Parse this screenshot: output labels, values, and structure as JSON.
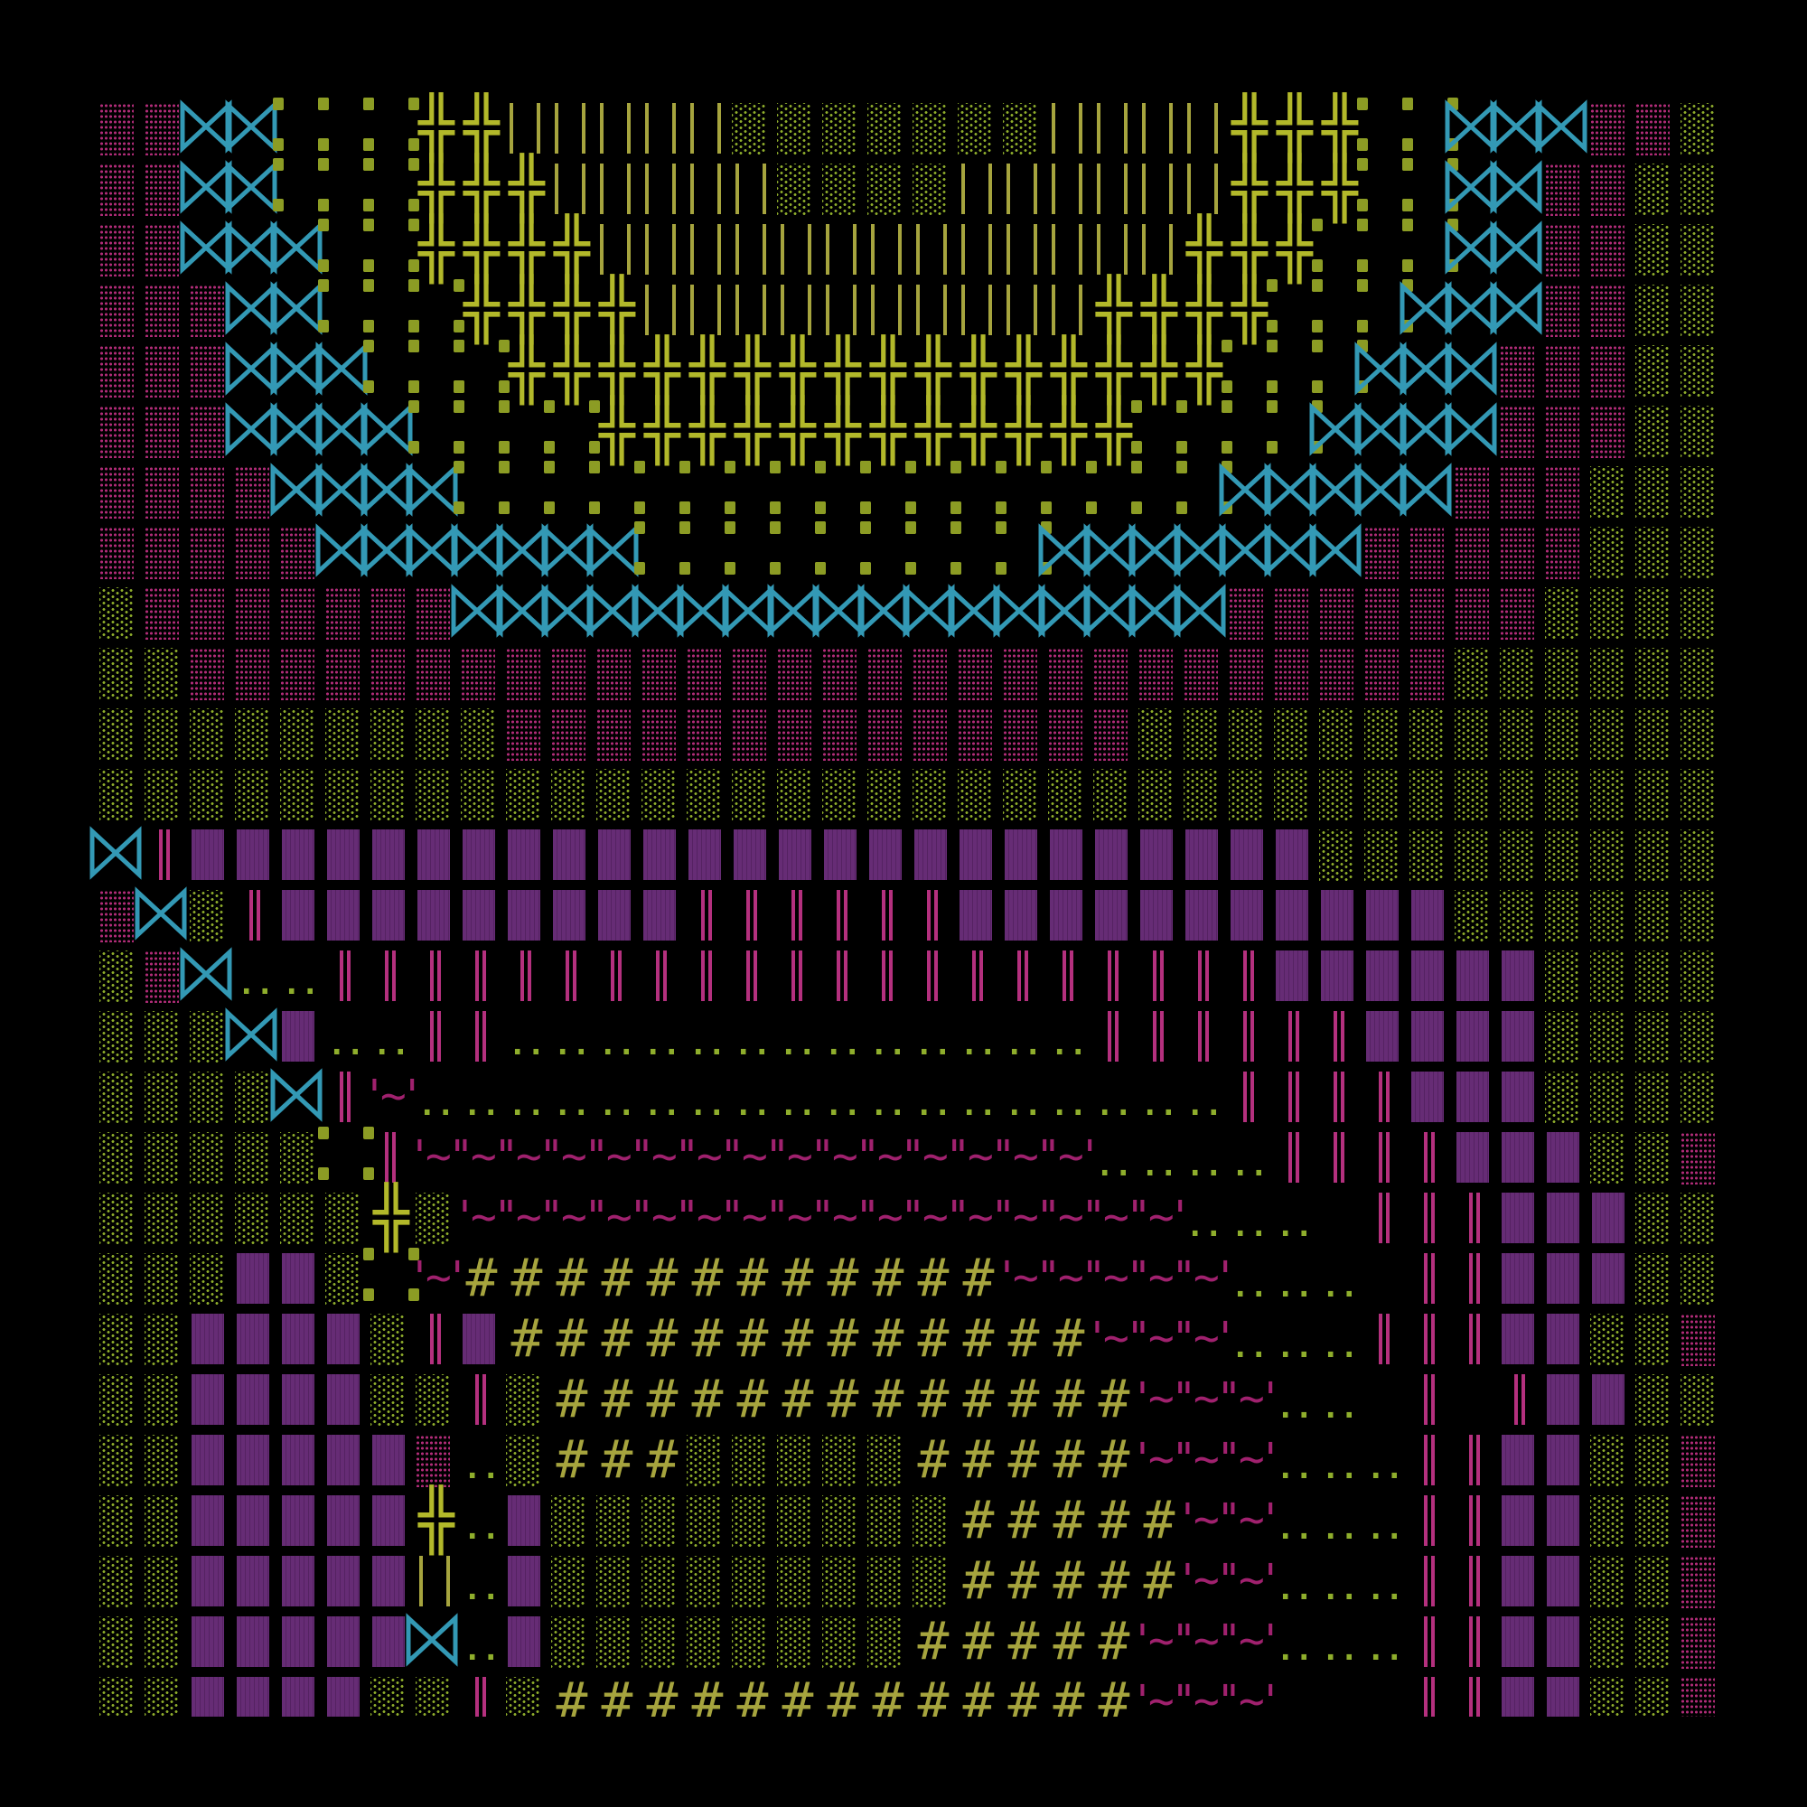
{
  "art": {
    "rows": [
      "ppBBDDDXXIIIIIgggggggIIIIXXXDDBBBppg",
      "ppBBDDDXXXIIIIIggggIIIIIIXXXDDBBppgg",
      "ppBBBDDXXXXIIIIIIIIIIIIIXXXDDDBBppgg",
      "pppBBDDDXXXXIIIIIIIIIIXXXXDDDBBBppgg",
      "pppBBBDDDXXXXXXXXXXXXXXXXDDDBBBpppgg",
      "pppBBBBDDDDXXXXXXXXXXXXDDDDBBBBpppgg",
      "ppppBBBBDDDDDDDDDDDDDDDDDBBBBBpppggg",
      "pppppBBBBBBBDDDDDDDDDBBBBBBBpppppggg",
      "gpppppppBBBBBBBBBBBBBBBBBpppppppgggg",
      "ggppppppppppppppppppppppppppppgggggg",
      "gggggggggppppppppppppppggggggggggggg",
      "gggggggggggggggggggggggggggggggggggg",
      "BPQQQQQQQQQQQQQQQQQQQQQQQQQggggggggg",
      "pBgPQQQQQQQQQPPPPPPQQQQQQQQQQQgggggg",
      "gpB..PPPPPPPPPPPPPPPPPPPPPQQQQQQgggg",
      "gggBQ..PP.............PPPPPPQQQQgggg",
      "ggggBPW..................PPPPQQQgggg",
      "gggggDPWWWWWWWWWWWWWWW....PPPPQQQggp",
      "ggggggXgWWWWWWWWWWWWWWWW... PPPQQQggp",
      "gggQQgDWHHHHHHHHHHHHWWWWW... PPQQQggp",
      "ggQQQQgPQHHHHHHHHHHHHHWWW...PPPQQggp",
      "ggQQQQggPgHHHHHHHHHHHHHWWW.. P PQQggp",
      "ggQQQQQp.gHHHgggggHHHHHWWW...PPQQggp",
      "ggQQQQQX.QgggggggggHHHHHWW...PPQQggp",
      "ggQQQQQI.QgggggggggHHHHHWW...PPQQggp",
      "ggQQQQQB.QggggggggHHHHHWWW...PPQQggp",
      "ggQQQQggPgHHHHHHHHHHHHHWWW   PPQQggp"
    ],
    "glyphs": {
      "p": "pink-dot-shade",
      "g": "green-dot-shade",
      "B": "⋈",
      "D": "green-corner-blocks",
      "X": "╬",
      "I": "||",
      "P": "‖",
      "Q": "purple-block",
      "H": "#",
      "W": "'~'",
      ".": ".."
    },
    "colors": {
      "background": "#000000",
      "pink": "#b02c78",
      "green_dots": "#8fae2c",
      "teal": "#3399b5",
      "green_blocks": "#8c9c24",
      "yellow": "#b2b82a",
      "olive": "#a6a43e",
      "magenta": "#b4307e",
      "purple": "#6c2f7c",
      "hash": "#a6a43e",
      "tilde": "#a0216e",
      "dotdot": "#8fae2c"
    }
  }
}
